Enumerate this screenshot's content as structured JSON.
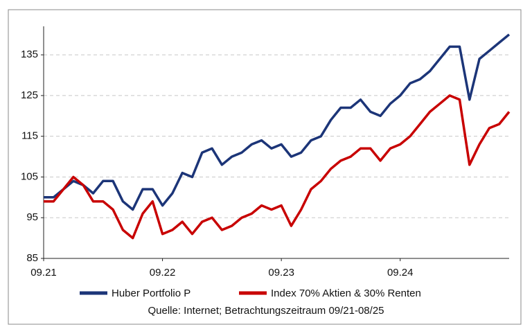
{
  "chart_data": {
    "type": "line",
    "x": [
      "2021-09",
      "2021-10",
      "2021-11",
      "2021-12",
      "2022-01",
      "2022-02",
      "2022-03",
      "2022-04",
      "2022-05",
      "2022-06",
      "2022-07",
      "2022-08",
      "2022-09",
      "2022-10",
      "2022-11",
      "2022-12",
      "2023-01",
      "2023-02",
      "2023-03",
      "2023-04",
      "2023-05",
      "2023-06",
      "2023-07",
      "2023-08",
      "2023-09",
      "2023-10",
      "2023-11",
      "2023-12",
      "2024-01",
      "2024-02",
      "2024-03",
      "2024-04",
      "2024-05",
      "2024-06",
      "2024-07",
      "2024-08",
      "2024-09",
      "2024-10",
      "2024-11",
      "2024-12",
      "2025-01",
      "2025-02",
      "2025-03",
      "2025-04",
      "2025-05",
      "2025-06",
      "2025-07",
      "2025-08"
    ],
    "series": [
      {
        "name": "Huber Portfolio P",
        "color": "#1c3578",
        "values": [
          100,
          100,
          102,
          104,
          103,
          101,
          104,
          104,
          99,
          97,
          102,
          102,
          98,
          101,
          106,
          105,
          111,
          112,
          108,
          110,
          111,
          113,
          114,
          112,
          113,
          110,
          111,
          114,
          115,
          119,
          122,
          122,
          124,
          121,
          120,
          123,
          125,
          128,
          129,
          131,
          134,
          137,
          137,
          124,
          134,
          136,
          138,
          140
        ]
      },
      {
        "name": "Index 70% Aktien & 30% Renten",
        "color": "#c80000",
        "values": [
          99,
          99,
          102,
          105,
          103,
          99,
          99,
          97,
          92,
          90,
          96,
          99,
          91,
          92,
          94,
          91,
          94,
          95,
          92,
          93,
          95,
          96,
          98,
          97,
          98,
          93,
          97,
          102,
          104,
          107,
          109,
          110,
          112,
          112,
          109,
          112,
          113,
          115,
          118,
          121,
          123,
          125,
          124,
          108,
          113,
          117,
          118,
          121
        ]
      }
    ],
    "ylim": [
      85,
      142
    ],
    "yticks": [
      85,
      95,
      105,
      115,
      125,
      135
    ],
    "xticks": [
      {
        "value": "2021-09",
        "label": "09.21"
      },
      {
        "value": "2022-09",
        "label": "09.22"
      },
      {
        "value": "2023-09",
        "label": "09.23"
      },
      {
        "value": "2024-09",
        "label": "09.24"
      }
    ],
    "grid": true,
    "source": "Quelle: Internet; Betrachtungszeitraum 09/21-08/25"
  }
}
